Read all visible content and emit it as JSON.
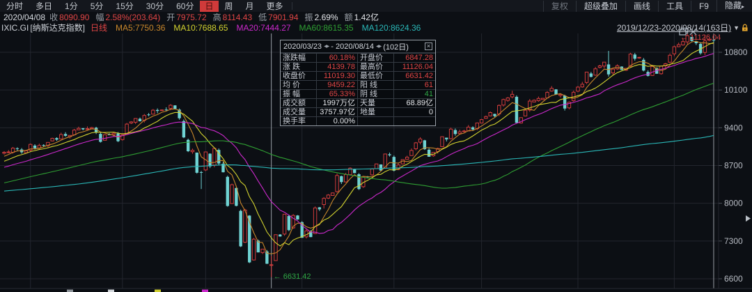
{
  "toolbar": {
    "tabs": [
      "分时",
      "多日",
      "1分",
      "5分",
      "15分",
      "30分",
      "60分",
      "日",
      "周",
      "月",
      "更多"
    ],
    "active_tab": "日",
    "tools": [
      "复权",
      "超级叠加",
      "画线",
      "工具",
      "F9",
      "隐藏"
    ],
    "disabled_tool": "复权",
    "hide_arrow": "▸"
  },
  "quote": {
    "date": "2020/04/08",
    "items": [
      {
        "label": "收",
        "value": "8090.90",
        "c": "red"
      },
      {
        "label": "幅",
        "value": "2.58%(203.64)",
        "c": "red"
      },
      {
        "label": "开",
        "value": "7975.72",
        "c": "red"
      },
      {
        "label": "高",
        "value": "8114.43",
        "c": "red"
      },
      {
        "label": "低",
        "value": "7901.94",
        "c": "red"
      },
      {
        "label": "振",
        "value": "2.69%",
        "c": "white"
      },
      {
        "label": "额",
        "value": "1.42亿",
        "c": "white"
      }
    ]
  },
  "ma_header": {
    "symbol": "IXIC.GI",
    "name": "[纳斯达克指数]",
    "period": "日线",
    "items": [
      {
        "text": "MA5:7750.36",
        "color": "#c8872b"
      },
      {
        "text": "MA10:7688.65",
        "color": "#d3d32f"
      },
      {
        "text": "MA20:7444.27",
        "color": "#cc29cc"
      },
      {
        "text": "MA60:8615.35",
        "color": "#2fa033"
      },
      {
        "text": "MA120:8624.36",
        "color": "#2ab8b8"
      }
    ],
    "range": "2019/12/23-2020/08/14(163日)",
    "dropdown_arrow": "▼"
  },
  "panel": {
    "start": "2020/03/23",
    "end": "2020/08/14",
    "separator": "-",
    "count": "(102日)",
    "arrows": "◀▶",
    "close": "×",
    "rows": [
      {
        "cells": [
          {
            "t": "涨跌幅",
            "v": "60.18%",
            "c": "red"
          },
          {
            "t": "开盘价",
            "v": "6847.28",
            "c": "red"
          }
        ]
      },
      {
        "cells": [
          {
            "t": "涨 跌",
            "v": "4139.78",
            "c": "red"
          },
          {
            "t": "最高价",
            "v": "11126.04",
            "c": "red"
          }
        ]
      },
      {
        "cells": [
          {
            "t": "收盘价",
            "v": "11019.30",
            "c": "red"
          },
          {
            "t": "最低价",
            "v": "6631.42",
            "c": "red"
          }
        ]
      },
      {
        "cells": [
          {
            "t": "均 价",
            "v": "9459.22",
            "c": "red"
          },
          {
            "t": "阳 线",
            "v": "61",
            "c": "red"
          }
        ]
      },
      {
        "cells": [
          {
            "t": "振 幅",
            "v": "65.33%",
            "c": "red"
          },
          {
            "t": "阴 线",
            "v": "41",
            "c": "green"
          }
        ]
      },
      {
        "cells": [
          {
            "t": "成交额",
            "v": "1997万亿",
            "c": "white"
          },
          {
            "t": "天量",
            "v": "68.89亿",
            "c": "white"
          }
        ]
      },
      {
        "cells": [
          {
            "t": "成交量",
            "v": "3757.97亿",
            "c": "white"
          },
          {
            "t": "地量",
            "v": "0",
            "c": "white"
          }
        ]
      },
      {
        "cells": [
          {
            "t": "换手率",
            "v": "0.00%",
            "c": "white"
          },
          {
            "t": "",
            "v": "",
            "c": "white"
          }
        ]
      }
    ]
  },
  "chart_data": {
    "type": "candlestick",
    "title": "纳斯达克指数 IXIC.GI 日线",
    "date_start": "2019/12/23",
    "date_end": "2020/08/14",
    "days": 163,
    "ylim": [
      6600,
      11150
    ],
    "y_ticks": [
      10800,
      10100,
      9400,
      8700,
      8000,
      7300,
      6600
    ],
    "grid": true,
    "closes": [
      8945,
      8952,
      9022,
      9007,
      8946,
      8973,
      9092,
      9021,
      9071,
      9069,
      9129,
      9203,
      9179,
      9274,
      9251,
      9259,
      9357,
      9389,
      9371,
      9383,
      9402,
      9315,
      9139,
      9270,
      9275,
      9299,
      9151,
      9273,
      9468,
      9509,
      9572,
      9521,
      9628,
      9639,
      9726,
      9712,
      9731,
      9732,
      9817,
      9751,
      9577,
      9221,
      8965,
      8981,
      8566,
      8567,
      8952,
      8684,
      9018,
      8738,
      8575,
      7950,
      8344,
      7952,
      7201,
      7874,
      6904,
      7334,
      7089,
      7150,
      6879,
      6861,
      7417,
      7384,
      7797,
      7502,
      7774,
      7700,
      7360,
      7487,
      7373,
      7913,
      7887,
      8091,
      8153,
      8192,
      8515,
      8393,
      8532,
      8650,
      8560,
      8263,
      8495,
      8494,
      8634,
      8730,
      8607,
      8914,
      8890,
      8605,
      8710,
      8809,
      8854,
      8979,
      9121,
      9192,
      9002,
      8863,
      8943,
      9014,
      9234,
      9185,
      9375,
      9284,
      9324,
      9340,
      9412,
      9368,
      9489,
      9552,
      9608,
      9682,
      9615,
      9814,
      9924,
      9953,
      10020,
      9492,
      9588,
      9726,
      9895,
      9910,
      9943,
      9946,
      10056,
      10131,
      10017,
      10017,
      9757,
      9874,
      10059,
      10154,
      10207,
      10433,
      10344,
      10493,
      10548,
      10617,
      10390,
      10488,
      10550,
      10474,
      10503,
      10767,
      10680,
      10706,
      10461,
      10363,
      10536,
      10402,
      10543,
      10587,
      10745,
      10903,
      10941,
      10998,
      11108,
      11010,
      10968,
      10782,
      11012,
      11042,
      11019.3
    ],
    "ohlc_overrides": {
      "38": [
        null,
        9838,
        null,
        null
      ],
      "45": [
        null,
        null,
        8264,
        null
      ],
      "61": [
        6847.28,
        7026,
        6631.42,
        6860.67
      ],
      "73": [
        7975.72,
        8114.43,
        7901.94,
        8090.9
      ],
      "116": [
        null,
        10086,
        null,
        null
      ],
      "138": [
        null,
        10825,
        null,
        null
      ],
      "160": [
        null,
        11126.04,
        null,
        null
      ]
    },
    "prehistory": [
      [
        -130,
        7954
      ],
      [
        -120,
        8109
      ],
      [
        -110,
        8185
      ],
      [
        -103,
        8330
      ],
      [
        -97,
        7726
      ],
      [
        -85,
        8020
      ],
      [
        -75,
        8117
      ],
      [
        -65,
        8183
      ],
      [
        -56,
        7785
      ],
      [
        -50,
        8057
      ],
      [
        -40,
        8243
      ],
      [
        -30,
        8475
      ],
      [
        -20,
        8520
      ],
      [
        -12,
        8566
      ],
      [
        -5,
        8735
      ],
      [
        -1,
        8925
      ]
    ],
    "ma_lines": [
      {
        "name": "MA5",
        "window": 5,
        "color": "#c8872b"
      },
      {
        "name": "MA10",
        "window": 10,
        "color": "#d3d32f"
      },
      {
        "name": "MA20",
        "window": 20,
        "color": "#cc29cc"
      },
      {
        "name": "MA60",
        "window": 60,
        "color": "#2fa033"
      },
      {
        "name": "MA120",
        "window": 120,
        "color": "#2ab8b8"
      }
    ],
    "month_grid_days": [
      6,
      27,
      46,
      68,
      89,
      109,
      131,
      153
    ],
    "selection": {
      "start_day": 61,
      "end_day": 162
    },
    "markers": {
      "low": {
        "day": 61,
        "label": "← 6631.42",
        "color": "#2fa845"
      },
      "high": {
        "day": 160,
        "label": "← 11126.04",
        "color": "#e04545"
      }
    },
    "colors": {
      "up": "#d23c3c",
      "down": "#6fd3d3",
      "bg": "#0c0f14",
      "grid": "#23262e",
      "axis_text": "#b8bcc4",
      "selection_line": "#9aa0a6",
      "icon": "#98a2ac"
    },
    "cutoff_specks": [
      {
        "x": 96,
        "color": "#8e949a"
      },
      {
        "x": 155,
        "color": "#d3d7dc"
      },
      {
        "x": 222,
        "color": "#cfcf30"
      },
      {
        "x": 290,
        "color": "#cc29cc"
      }
    ]
  }
}
